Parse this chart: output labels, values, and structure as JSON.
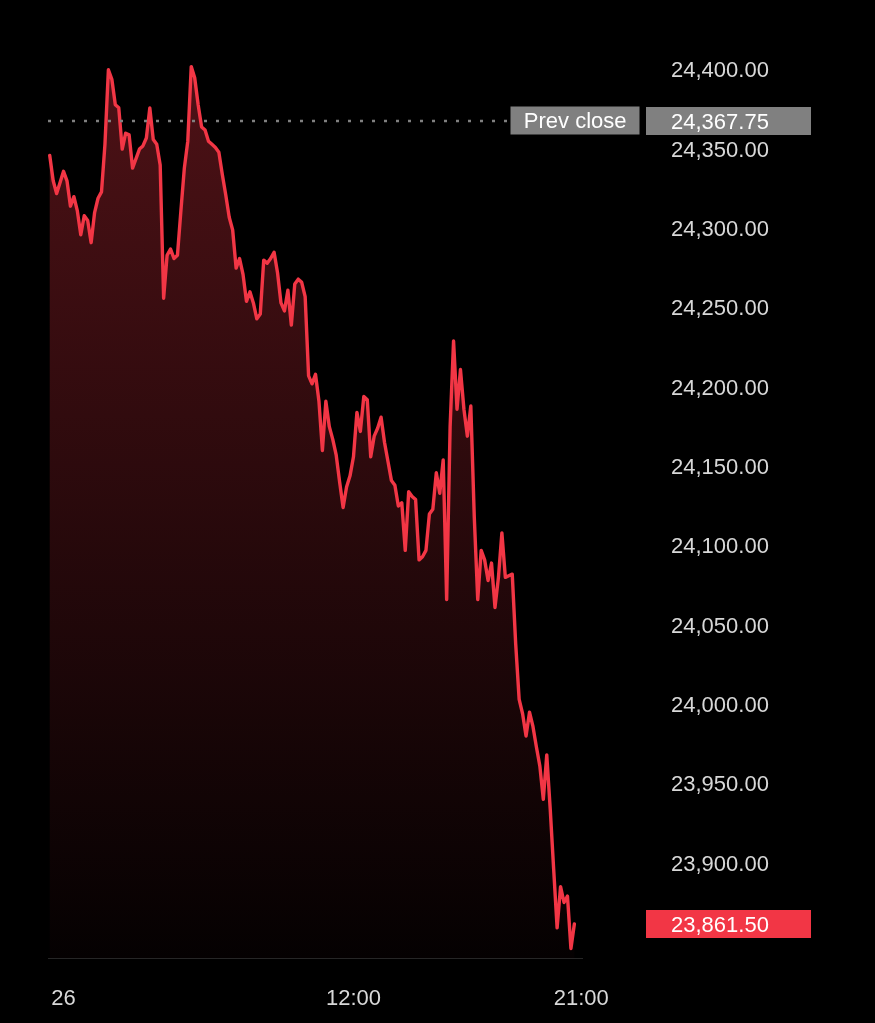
{
  "chart_data": {
    "type": "area",
    "categories": [
      null,
      null,
      null,
      null,
      "26",
      null,
      null,
      null,
      null,
      null,
      null,
      null,
      null,
      null,
      null,
      null,
      null,
      null,
      null,
      null,
      null,
      null,
      null,
      null,
      null,
      null,
      null,
      null,
      null,
      null,
      null,
      null,
      null,
      null,
      null,
      null,
      null,
      null,
      null,
      null,
      null,
      null,
      null,
      null,
      null,
      null,
      null,
      null,
      null,
      null,
      null,
      null,
      null,
      null,
      null,
      null,
      null,
      null,
      null,
      null,
      null,
      null,
      null,
      null,
      null,
      null,
      null,
      null,
      null,
      null,
      null,
      null,
      null,
      null,
      null,
      null,
      null,
      null,
      null,
      null,
      null,
      null,
      null,
      null,
      null,
      null,
      null,
      null,
      "12:00",
      null,
      null,
      null,
      null,
      null,
      null,
      null,
      null,
      null,
      null,
      null,
      null,
      null,
      null,
      null,
      null,
      null,
      null,
      null,
      null,
      null,
      null,
      null,
      null,
      null,
      null,
      null,
      null,
      null,
      null,
      null,
      null,
      null,
      null,
      null,
      null,
      null,
      null,
      null,
      null,
      null,
      null,
      null,
      null,
      null,
      null,
      null,
      null,
      null,
      null,
      null,
      null,
      null,
      null,
      null,
      null,
      null,
      null,
      null,
      null,
      null,
      null,
      null,
      null,
      null,
      "21:00"
    ],
    "series": [
      {
        "color": "#f23645",
        "values": [
          24346,
          24330,
          24322,
          24329,
          24336,
          24330,
          24314,
          24320,
          24311,
          24296,
          24308,
          24305,
          24291,
          24310,
          24319,
          24323,
          24353,
          24400,
          24394,
          24378,
          24376,
          24350,
          24360,
          24359,
          24338,
          24344,
          24350,
          24352,
          24357,
          24376,
          24356,
          24353,
          24340,
          24256,
          24283,
          24287,
          24281,
          24283,
          24311,
          24338,
          24355,
          24402,
          24395,
          24378,
          24364,
          24362,
          24355,
          24353,
          24351,
          24348,
          24334,
          24321,
          24307,
          24299,
          24275,
          24281,
          24271,
          24254,
          24260,
          24253,
          24243,
          24246,
          24280,
          24278,
          24281,
          24285,
          24272,
          24253,
          24248,
          24261,
          24239,
          24265,
          24268,
          24266,
          24257,
          24207,
          24202,
          24208,
          24191,
          24160,
          24191,
          24175,
          24167,
          24157,
          24140,
          24124,
          24137,
          24144,
          24156,
          24184,
          24172,
          24194,
          24192,
          24156,
          24169,
          24174,
          24181,
          24165,
          24153,
          24141,
          24138,
          24125,
          24127,
          24097,
          24134,
          24131,
          24129,
          24091,
          24093,
          24097,
          24120,
          24123,
          24146,
          24133,
          24154,
          24066,
          24175,
          24229,
          24186,
          24211,
          24186,
          24169,
          24188,
          24118,
          24066,
          24097,
          24091,
          24078,
          24089,
          24061,
          24080,
          24108,
          24080,
          24081,
          24082,
          24038,
          24003,
          23994,
          23980,
          23995,
          23986,
          23973,
          23961,
          23940,
          23968,
          23934,
          23896,
          23859,
          23885,
          23875,
          23879,
          23846,
          23861.5,
          null,
          null
        ]
      }
    ],
    "ylim": [
      23840,
      24444
    ],
    "yticks": [
      {
        "value": 23861.5,
        "label": "23,861.50"
      },
      {
        "value": 23900,
        "label": "23,900.00"
      },
      {
        "value": 23950,
        "label": "23,950.00"
      },
      {
        "value": 24000,
        "label": "24,000.00"
      },
      {
        "value": 24050,
        "label": "24,050.00"
      },
      {
        "value": 24100,
        "label": "24,100.00"
      },
      {
        "value": 24150,
        "label": "24,150.00"
      },
      {
        "value": 24200,
        "label": "24,200.00"
      },
      {
        "value": 24250,
        "label": "24,250.00"
      },
      {
        "value": 24300,
        "label": "24,300.00"
      },
      {
        "value": 24350,
        "label": "24,350.00"
      },
      {
        "value": 24367.75,
        "label": "24,367.75"
      },
      {
        "value": 24400,
        "label": "24,400.00"
      }
    ],
    "ref_lines": [
      {
        "axis": "y",
        "value": 24367.75,
        "label": "Prev close",
        "color": "#808080",
        "line_style": "dotted"
      }
    ],
    "grid": false
  }
}
